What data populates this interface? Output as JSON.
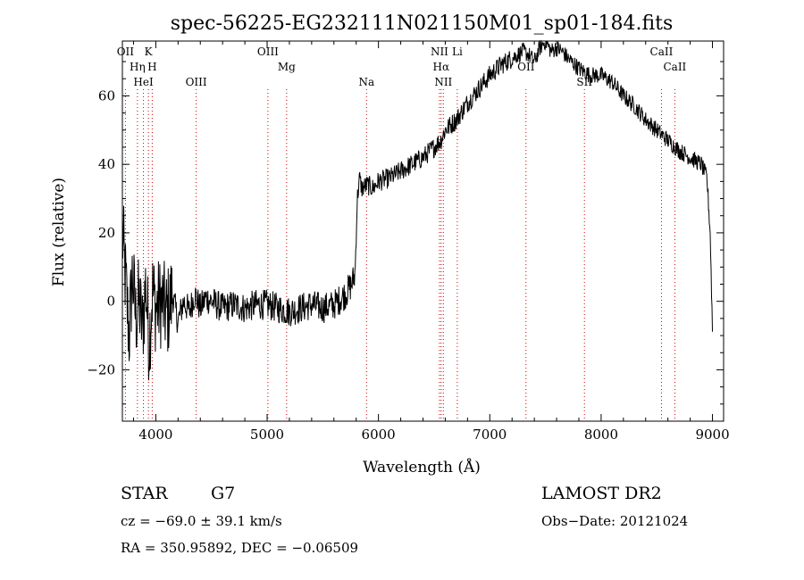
{
  "chart_data": {
    "type": "line",
    "title": "spec-56225-EG232111N021150M01_sp01-184.fits",
    "xlabel": "Wavelength (Å)",
    "ylabel": "Flux (relative)",
    "xlim": [
      3700,
      9100
    ],
    "ylim": [
      -35,
      76
    ],
    "x_ticks": [
      4000,
      5000,
      6000,
      7000,
      8000,
      9000
    ],
    "y_ticks": [
      -20,
      0,
      20,
      40,
      60
    ],
    "grid": false,
    "series": [
      {
        "x": [
          3700,
          3730,
          3760,
          3790,
          3820,
          3850,
          3880,
          3910,
          3940,
          3970,
          4000,
          4050,
          4100,
          4150,
          4200,
          4250,
          4300,
          4350,
          4400,
          4450,
          4500,
          4600,
          4700,
          4800,
          4900,
          5000,
          5100,
          5200,
          5300,
          5400,
          5500,
          5600,
          5700,
          5760,
          5790,
          5810,
          5830,
          5850,
          5900,
          5950,
          6000,
          6100,
          6200,
          6300,
          6400,
          6500,
          6560,
          6600,
          6700,
          6800,
          6900,
          7000,
          7100,
          7200,
          7300,
          7350,
          7400,
          7450,
          7500,
          7550,
          7600,
          7650,
          7700,
          7800,
          7900,
          8000,
          8100,
          8200,
          8300,
          8400,
          8500,
          8600,
          8700,
          8800,
          8900,
          8950,
          8980,
          9000
        ],
        "y": [
          20,
          5,
          -10,
          8,
          -5,
          0,
          -8,
          5,
          -12,
          3,
          -2,
          0,
          -4,
          2,
          -6,
          0,
          -3,
          2,
          -2,
          1,
          0,
          -2,
          -1,
          -2,
          -1,
          -1,
          -2,
          -3,
          -2,
          -1,
          -2,
          -1,
          2,
          5,
          8,
          30,
          36,
          33,
          34,
          33,
          35,
          36,
          38,
          40,
          42,
          45,
          47,
          50,
          53,
          58,
          62,
          66,
          69,
          71,
          73,
          72,
          70,
          74,
          76,
          73,
          74,
          73,
          71,
          68,
          66,
          66,
          64,
          60,
          57,
          53,
          50,
          47,
          44,
          42,
          40,
          36,
          20,
          -8
        ]
      }
    ],
    "lines": [
      {
        "label": "OII",
        "x": 3727
      },
      {
        "label": "Hη",
        "x": 3835
      },
      {
        "label": "HeI",
        "x": 3889
      },
      {
        "label": "K",
        "x": 3934
      },
      {
        "label": "H",
        "x": 3968
      },
      {
        "label": "OIII",
        "x": 4363
      },
      {
        "label": "OIII",
        "x": 5007
      },
      {
        "label": "Mg",
        "x": 5175
      },
      {
        "label": "Na",
        "x": 5893
      },
      {
        "label": "NII",
        "x": 6548
      },
      {
        "label": "Hα",
        "x": 6563
      },
      {
        "label": "NII",
        "x": 6583
      },
      {
        "label": "Li",
        "x": 6708
      },
      {
        "label": "OII",
        "x": 7325
      },
      {
        "label": "SII",
        "x": 7850
      },
      {
        "label": "CaII",
        "x": 8542
      },
      {
        "label": "CaII",
        "x": 8662
      }
    ]
  },
  "info": {
    "class": "STAR",
    "subclass": "G7",
    "survey": "LAMOST DR2",
    "cz": "cz = −69.0 ± 39.1 km/s",
    "obs_date": "Obs−Date: 20121024",
    "coords": "RA = 350.95892, DEC =  −0.06509"
  },
  "colors": {
    "line": "#000000",
    "marker_line": "#cc0000"
  }
}
